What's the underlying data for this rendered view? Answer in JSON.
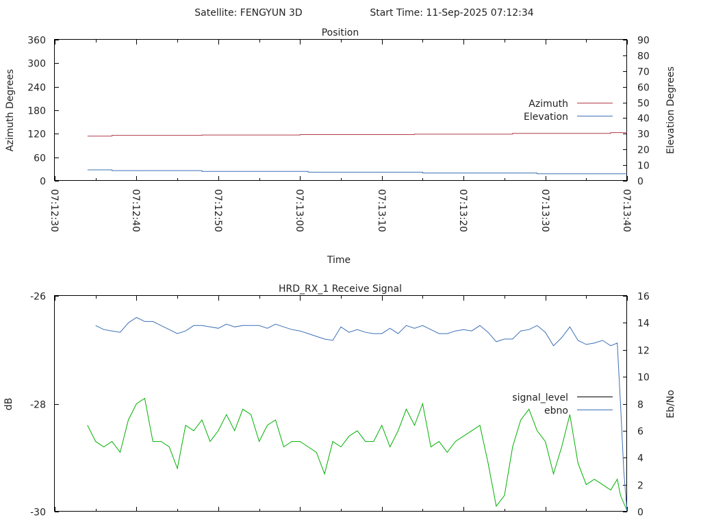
{
  "header": {
    "satellite": "Satellite: FENGYUN 3D",
    "start_time": "Start Time: 11-Sep-2025 07:12:34"
  },
  "chart_data": [
    {
      "type": "line",
      "title": "Position",
      "xlabel": "Time",
      "ylabel": "Azimuth Degrees",
      "y2label": "Elevation Degrees",
      "x_ticks": [
        "07:12:30",
        "07:12:40",
        "07:12:50",
        "07:13:00",
        "07:13:10",
        "07:13:20",
        "07:13:30",
        "07:13:40"
      ],
      "xlim": [
        0,
        70
      ],
      "ylim": [
        0,
        360
      ],
      "y2lim": [
        0,
        90
      ],
      "y_ticks": [
        0,
        60,
        120,
        180,
        240,
        300,
        360
      ],
      "y2_ticks": [
        0,
        10,
        20,
        30,
        40,
        50,
        60,
        70,
        80,
        90
      ],
      "legend_position": "right",
      "grid": false,
      "series": [
        {
          "name": "Azimuth",
          "axis": "left",
          "color": "#b03a48",
          "x": [
            4,
            7,
            7,
            18,
            18,
            30,
            30,
            44,
            44,
            56,
            56,
            68,
            68,
            70
          ],
          "y": [
            114,
            114,
            116,
            116,
            117,
            117,
            118,
            118,
            119,
            119,
            121,
            121,
            123,
            123
          ]
        },
        {
          "name": "Elevation",
          "axis": "right",
          "color": "#3b6fb6",
          "x": [
            4,
            7,
            7,
            18,
            18,
            31,
            31,
            45,
            45,
            59,
            59,
            70
          ],
          "y": [
            7,
            7,
            6.5,
            6.5,
            6,
            6,
            5.5,
            5.5,
            5,
            5,
            4.5,
            4.5
          ]
        }
      ]
    },
    {
      "type": "line",
      "title": "HRD_RX_1 Receive Signal",
      "ylabel": "dB",
      "y2label": "Eb/No",
      "xlim": [
        0,
        70
      ],
      "ylim": [
        -30,
        -26
      ],
      "y2lim": [
        0,
        16
      ],
      "y_ticks": [
        -30,
        -28,
        -26
      ],
      "y2_ticks": [
        0,
        2,
        4,
        6,
        8,
        10,
        12,
        14,
        16
      ],
      "legend_position": "right",
      "grid": false,
      "series": [
        {
          "name": "signal_level",
          "axis": "left",
          "color": "#00b000",
          "x": [
            4,
            5,
            6,
            7,
            8,
            9,
            10,
            11,
            12,
            13,
            14,
            15,
            16,
            17,
            18,
            19,
            20,
            21,
            22,
            23,
            24,
            25,
            26,
            27,
            28,
            29,
            30,
            31,
            32,
            33,
            34,
            35,
            36,
            37,
            38,
            39,
            40,
            41,
            42,
            43,
            44,
            45,
            46,
            47,
            48,
            49,
            50,
            51,
            52,
            53,
            54,
            55,
            56,
            57,
            58,
            59,
            60,
            61,
            62,
            63,
            64,
            65,
            66,
            67,
            68,
            68.8,
            69.2,
            70
          ],
          "y": [
            -28.4,
            -28.7,
            -28.8,
            -28.7,
            -28.9,
            -28.3,
            -28.0,
            -27.9,
            -28.7,
            -28.7,
            -28.8,
            -29.2,
            -28.4,
            -28.5,
            -28.3,
            -28.7,
            -28.5,
            -28.2,
            -28.5,
            -28.1,
            -28.2,
            -28.7,
            -28.4,
            -28.3,
            -28.8,
            -28.7,
            -28.7,
            -28.8,
            -28.9,
            -29.3,
            -28.7,
            -28.8,
            -28.6,
            -28.5,
            -28.7,
            -28.7,
            -28.4,
            -28.8,
            -28.5,
            -28.1,
            -28.4,
            -28.0,
            -28.8,
            -28.7,
            -28.9,
            -28.7,
            -28.6,
            -28.5,
            -28.4,
            -29.1,
            -29.9,
            -29.7,
            -28.8,
            -28.3,
            -28.1,
            -28.5,
            -28.7,
            -29.3,
            -28.8,
            -28.2,
            -29.1,
            -29.5,
            -29.4,
            -29.5,
            -29.6,
            -29.4,
            -29.7,
            -29.98
          ]
        },
        {
          "name": "ebno",
          "axis": "right",
          "color": "#3b6fb6",
          "x": [
            5,
            6,
            7,
            8,
            9,
            10,
            11,
            12,
            13,
            14,
            15,
            16,
            17,
            18,
            19,
            20,
            21,
            22,
            23,
            24,
            25,
            26,
            27,
            28,
            29,
            30,
            31,
            32,
            33,
            34,
            35,
            36,
            37,
            38,
            39,
            40,
            41,
            42,
            43,
            44,
            45,
            46,
            47,
            48,
            49,
            50,
            51,
            52,
            53,
            54,
            55,
            56,
            57,
            58,
            59,
            60,
            61,
            62,
            63,
            64,
            65,
            66,
            67,
            68,
            68.8,
            69.2,
            69.6,
            70
          ],
          "y": [
            13.8,
            13.5,
            13.4,
            13.3,
            14.0,
            14.4,
            14.1,
            14.1,
            13.8,
            13.5,
            13.2,
            13.4,
            13.8,
            13.8,
            13.7,
            13.6,
            13.9,
            13.7,
            13.8,
            13.8,
            13.8,
            13.6,
            13.9,
            13.7,
            13.5,
            13.4,
            13.2,
            13.0,
            12.8,
            12.7,
            13.7,
            13.3,
            13.5,
            13.3,
            13.2,
            13.2,
            13.6,
            13.2,
            13.8,
            13.6,
            13.8,
            13.5,
            13.2,
            13.2,
            13.4,
            13.5,
            13.4,
            13.8,
            13.3,
            12.6,
            12.8,
            12.8,
            13.4,
            13.5,
            13.8,
            13.3,
            12.3,
            12.9,
            13.7,
            12.7,
            12.4,
            12.5,
            12.7,
            12.3,
            12.5,
            8.0,
            3.0,
            0.0
          ]
        }
      ]
    }
  ]
}
